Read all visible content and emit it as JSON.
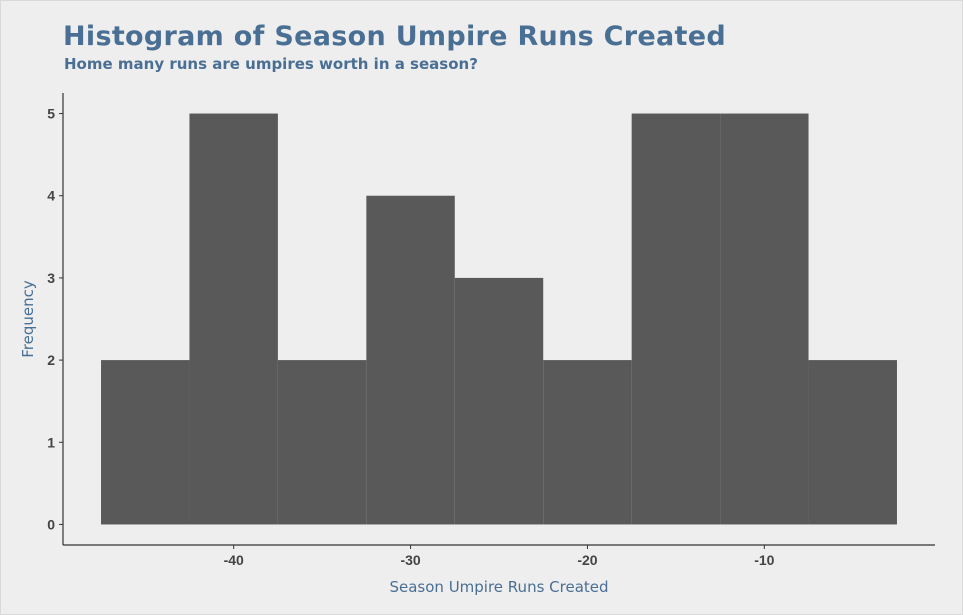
{
  "chart_data": {
    "type": "bar",
    "title": "Histogram of Season Umpire Runs Created",
    "subtitle": "Home many runs are umpires worth in a season?",
    "xlabel": "Season Umpire Runs Created",
    "ylabel": "Frequency",
    "bin_width": 5,
    "bins": [
      {
        "x0": -47.5,
        "x1": -42.5,
        "count": 2
      },
      {
        "x0": -42.5,
        "x1": -37.5,
        "count": 5
      },
      {
        "x0": -37.5,
        "x1": -32.5,
        "count": 2
      },
      {
        "x0": -32.5,
        "x1": -27.5,
        "count": 4
      },
      {
        "x0": -27.5,
        "x1": -22.5,
        "count": 3
      },
      {
        "x0": -22.5,
        "x1": -17.5,
        "count": 2
      },
      {
        "x0": -17.5,
        "x1": -12.5,
        "count": 5
      },
      {
        "x0": -12.5,
        "x1": -7.5,
        "count": 5
      },
      {
        "x0": -7.5,
        "x1": -2.5,
        "count": 2
      }
    ],
    "xlim": [
      -49.65,
      -0.35
    ],
    "ylim": [
      -0.25,
      5.25
    ],
    "x_ticks": [
      -40,
      -30,
      -20,
      -10
    ],
    "y_ticks": [
      0,
      1,
      2,
      3,
      4,
      5
    ],
    "grid": false,
    "legend": "none",
    "colors": {
      "bar": "#595959",
      "title": "#4a6f94",
      "axis_title": "#4a6f94",
      "tick": "#444444",
      "axis_line": "#333333",
      "background": "#eeeeee"
    }
  }
}
